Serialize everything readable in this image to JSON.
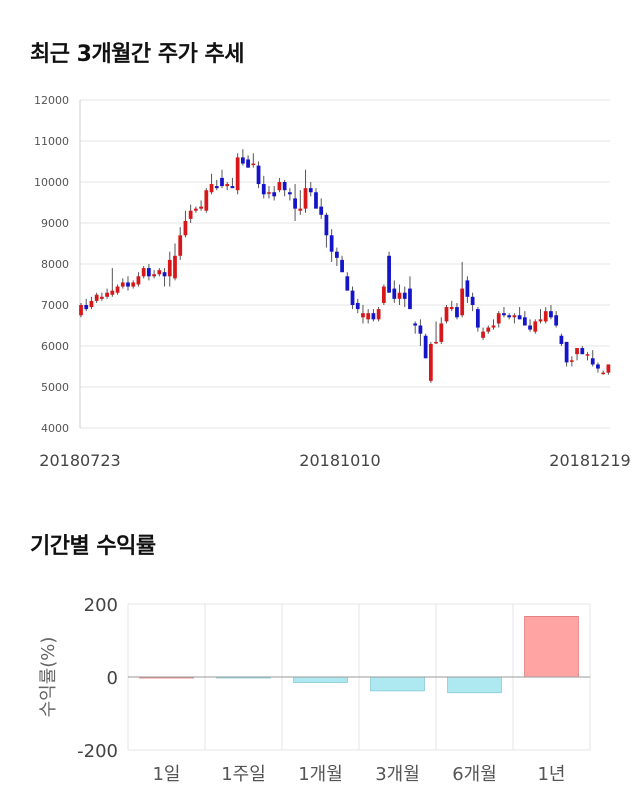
{
  "sections": {
    "price_title": "최근 3개월간 주가 추세",
    "returns_title": "기간별 수익률"
  },
  "colors": {
    "up": "#d6181b",
    "down": "#1414c8",
    "wick": "#555555",
    "grid": "#e4e4e4",
    "positive_bar": "#ffa3a3",
    "negative_bar": "#aee8f0"
  },
  "chart_data": [
    {
      "type": "candlestick",
      "title": "최근 3개월간 주가 추세",
      "y_ticks": [
        "12000",
        "11000",
        "10000",
        "9000",
        "8000",
        "7000",
        "6000",
        "5000",
        "4000"
      ],
      "ylim": [
        4000,
        12000
      ],
      "x_tick_labels": [
        "20180723",
        "20181010",
        "20181219"
      ],
      "grid": true,
      "ohlc": [
        [
          6750,
          7050,
          6700,
          7000
        ],
        [
          7000,
          7150,
          6850,
          6900
        ],
        [
          6950,
          7200,
          6900,
          7100
        ],
        [
          7100,
          7300,
          7050,
          7250
        ],
        [
          7150,
          7300,
          7100,
          7200
        ],
        [
          7200,
          7400,
          7150,
          7300
        ],
        [
          7250,
          7900,
          7200,
          7350
        ],
        [
          7300,
          7500,
          7250,
          7450
        ],
        [
          7450,
          7650,
          7400,
          7550
        ],
        [
          7550,
          7700,
          7350,
          7450
        ],
        [
          7450,
          7600,
          7400,
          7550
        ],
        [
          7500,
          7800,
          7450,
          7700
        ],
        [
          7700,
          7950,
          7650,
          7900
        ],
        [
          7900,
          8000,
          7600,
          7700
        ],
        [
          7700,
          7850,
          7650,
          7750
        ],
        [
          7750,
          7900,
          7700,
          7850
        ],
        [
          7800,
          7900,
          7450,
          7700
        ],
        [
          7700,
          8300,
          7450,
          8100
        ],
        [
          7650,
          8500,
          7600,
          8200
        ],
        [
          8200,
          8900,
          8100,
          8700
        ],
        [
          8700,
          9300,
          8650,
          9050
        ],
        [
          9100,
          9450,
          9000,
          9300
        ],
        [
          9300,
          9400,
          9250,
          9350
        ],
        [
          9350,
          9550,
          9300,
          9400
        ],
        [
          9300,
          9850,
          9250,
          9800
        ],
        [
          9750,
          10200,
          9700,
          9950
        ],
        [
          9900,
          10050,
          9800,
          9850
        ],
        [
          10100,
          10300,
          9850,
          9900
        ],
        [
          9900,
          10000,
          9800,
          9950
        ],
        [
          9900,
          10100,
          9850,
          9850
        ],
        [
          9800,
          10700,
          9700,
          10600
        ],
        [
          10600,
          10800,
          10400,
          10450
        ],
        [
          10550,
          10650,
          10350,
          10350
        ],
        [
          10450,
          10700,
          10350,
          10450
        ],
        [
          10400,
          10500,
          9850,
          9950
        ],
        [
          9950,
          10150,
          9600,
          9700
        ],
        [
          9750,
          9900,
          9600,
          9750
        ],
        [
          9750,
          9900,
          9550,
          9650
        ],
        [
          9800,
          10100,
          9750,
          10000
        ],
        [
          10000,
          10050,
          9650,
          9800
        ],
        [
          9750,
          9850,
          9550,
          9700
        ],
        [
          9600,
          9950,
          9050,
          9350
        ],
        [
          9300,
          9800,
          9200,
          9350
        ],
        [
          9350,
          10300,
          9250,
          9850
        ],
        [
          9850,
          10000,
          9650,
          9750
        ],
        [
          9750,
          9850,
          9400,
          9350
        ],
        [
          9400,
          9600,
          9100,
          9200
        ],
        [
          9200,
          9250,
          8400,
          8700
        ],
        [
          8700,
          8850,
          8050,
          8300
        ],
        [
          8300,
          8400,
          7950,
          8150
        ],
        [
          8100,
          8200,
          7800,
          7800
        ],
        [
          7700,
          7800,
          7400,
          7350
        ],
        [
          7350,
          7450,
          6900,
          7000
        ],
        [
          7050,
          7150,
          6800,
          6900
        ],
        [
          6700,
          7000,
          6550,
          6800
        ],
        [
          6650,
          6900,
          6550,
          6800
        ],
        [
          6800,
          6900,
          6600,
          6650
        ],
        [
          6650,
          6950,
          6600,
          6900
        ],
        [
          7050,
          7500,
          7000,
          7450
        ],
        [
          8200,
          8300,
          7300,
          7300
        ],
        [
          7400,
          7600,
          7050,
          7150
        ],
        [
          7150,
          7500,
          7000,
          7300
        ],
        [
          7300,
          7450,
          6950,
          7150
        ],
        [
          7400,
          7700,
          6900,
          6900
        ],
        [
          6550,
          6600,
          6300,
          6500
        ],
        [
          6500,
          6650,
          6000,
          6300
        ],
        [
          6250,
          6300,
          5700,
          5700
        ],
        [
          5150,
          6100,
          5100,
          6050
        ],
        [
          6100,
          6600,
          6050,
          6100
        ],
        [
          6100,
          6700,
          6050,
          6550
        ],
        [
          6600,
          7000,
          6550,
          6950
        ],
        [
          6900,
          7100,
          6850,
          6950
        ],
        [
          6950,
          7050,
          6650,
          6700
        ],
        [
          6750,
          8050,
          6700,
          7400
        ],
        [
          7600,
          7700,
          7050,
          7200
        ],
        [
          7200,
          7300,
          6850,
          7000
        ],
        [
          6900,
          6950,
          6350,
          6450
        ],
        [
          6200,
          6450,
          6150,
          6350
        ],
        [
          6350,
          6500,
          6300,
          6450
        ],
        [
          6450,
          6650,
          6400,
          6500
        ],
        [
          6550,
          6850,
          6450,
          6800
        ],
        [
          6800,
          6950,
          6700,
          6750
        ],
        [
          6750,
          6800,
          6650,
          6700
        ],
        [
          6700,
          6800,
          6550,
          6750
        ],
        [
          6750,
          6950,
          6650,
          6650
        ],
        [
          6700,
          6850,
          6500,
          6500
        ],
        [
          6500,
          6650,
          6350,
          6400
        ],
        [
          6350,
          6650,
          6300,
          6600
        ],
        [
          6600,
          6900,
          6550,
          6650
        ],
        [
          6600,
          6950,
          6550,
          6850
        ],
        [
          6850,
          7000,
          6650,
          6700
        ],
        [
          6750,
          6850,
          6450,
          6500
        ],
        [
          6250,
          6300,
          6000,
          6050
        ],
        [
          6100,
          6100,
          5500,
          5600
        ],
        [
          5650,
          5750,
          5500,
          5650
        ],
        [
          5800,
          5950,
          5650,
          5950
        ],
        [
          5950,
          6000,
          5800,
          5800
        ],
        [
          5800,
          5850,
          5650,
          5800
        ],
        [
          5700,
          5900,
          5500,
          5550
        ],
        [
          5550,
          5600,
          5350,
          5450
        ],
        [
          5350,
          5400,
          5300,
          5350
        ],
        [
          5350,
          5550,
          5300,
          5550
        ]
      ]
    },
    {
      "type": "bar",
      "title": "기간별 수익률",
      "ylabel": "수익률(%)",
      "categories": [
        "1일",
        "1주일",
        "1개월",
        "3개월",
        "6개월",
        "1년"
      ],
      "values": [
        0,
        -2,
        -15,
        -38,
        -43,
        166
      ],
      "y_ticks": [
        "200",
        "0",
        "-200"
      ],
      "ylim": [
        -200,
        200
      ],
      "grid": true
    }
  ]
}
